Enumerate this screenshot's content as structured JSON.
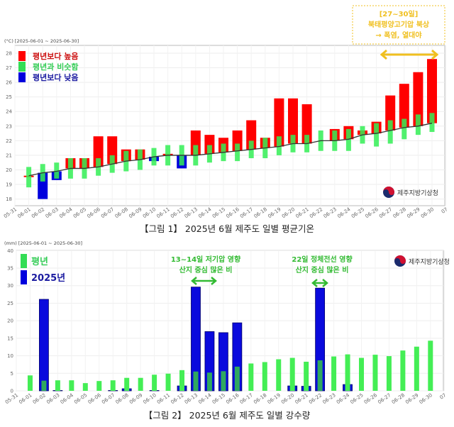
{
  "chart_data": [
    {
      "type": "bar",
      "title": "【그림 1】 2025년 6월 제주도 일별 평균기온",
      "unit_label": "(°C) [2025-06-01 ~ 2025-06-30]",
      "ylim": [
        18,
        28
      ],
      "yticks": [
        "18",
        "19",
        "20",
        "21",
        "22",
        "23",
        "24",
        "25",
        "26",
        "27",
        "28"
      ],
      "xticks": [
        "05-31",
        "06-01",
        "06-02",
        "06-03",
        "06-04",
        "06-05",
        "06-06",
        "06-07",
        "06-08",
        "06-09",
        "06-10",
        "06-11",
        "06-12",
        "06-13",
        "06-14",
        "06-15",
        "06-16",
        "06-17",
        "06-18",
        "06-19",
        "06-20",
        "06-21",
        "06-22",
        "06-23",
        "06-24",
        "06-25",
        "06-26",
        "06-27",
        "06-28",
        "06-29",
        "06-30",
        "07"
      ],
      "legend": [
        {
          "label": "평년보다 높음",
          "color": "#ff0000"
        },
        {
          "label": "평년과 비슷함",
          "color": "#33dd55"
        },
        {
          "label": "평년보다 낮음",
          "color": "#0000dd"
        }
      ],
      "legend_placement": "top-left",
      "observed": [
        19.6,
        18.0,
        19.3,
        20.8,
        20.8,
        22.3,
        22.3,
        21.4,
        21.4,
        20.6,
        21.1,
        20.1,
        22.7,
        22.4,
        22.2,
        22.7,
        23.4,
        22.2,
        24.9,
        24.9,
        24.5,
        22.0,
        22.8,
        23.0,
        22.7,
        23.3,
        25.1,
        25.9,
        26.7,
        27.6
      ],
      "category": [
        "high",
        "low",
        "low",
        "high",
        "high",
        "high",
        "high",
        "high",
        "high",
        "low",
        "high",
        "low",
        "high",
        "high",
        "high",
        "high",
        "high",
        "high",
        "high",
        "high",
        "high",
        "similar",
        "high",
        "high",
        "high",
        "high",
        "high",
        "high",
        "high",
        "high"
      ],
      "normal": [
        19.6,
        19.8,
        19.9,
        20.1,
        20.1,
        20.2,
        20.4,
        20.6,
        20.7,
        20.9,
        21.0,
        21.0,
        21.0,
        21.1,
        21.2,
        21.3,
        21.4,
        21.5,
        21.6,
        21.8,
        21.8,
        22.0,
        22.0,
        22.1,
        22.4,
        22.5,
        22.7,
        22.9,
        23.0,
        23.2
      ],
      "normal_range_low": [
        18.8,
        19.2,
        19.4,
        19.4,
        19.4,
        19.6,
        19.8,
        19.9,
        20.0,
        20.3,
        20.3,
        20.3,
        20.3,
        20.5,
        20.6,
        20.6,
        20.8,
        20.8,
        21.0,
        21.2,
        21.2,
        21.3,
        21.3,
        21.3,
        21.8,
        21.6,
        21.8,
        22.1,
        22.4,
        22.6
      ],
      "normal_range_high": [
        20.2,
        20.4,
        20.5,
        20.8,
        20.8,
        20.8,
        21.0,
        21.3,
        21.4,
        21.5,
        21.7,
        21.7,
        21.7,
        21.7,
        21.8,
        21.8,
        22.0,
        22.2,
        22.3,
        22.4,
        22.4,
        22.7,
        22.7,
        22.8,
        23.0,
        23.2,
        23.4,
        23.5,
        23.8,
        23.9
      ],
      "annotation": {
        "lines": [
          "[27~30일]",
          "북태평양고기압 북상",
          "→ 폭염, 열대야"
        ],
        "color": "#f0c020",
        "span": [
          "06-27",
          "06-30"
        ]
      },
      "logo_text": "제주지방기상청"
    },
    {
      "type": "bar",
      "title": "【그림 2】 2025년 6월 제주도 일별 강수량",
      "unit_label": "(mm) [2025-06-01 ~ 2025-06-30]",
      "ylim": [
        0,
        40
      ],
      "yticks": [
        "0",
        "5",
        "10",
        "15",
        "20",
        "25",
        "30",
        "35",
        "40"
      ],
      "xticks": [
        "05-31",
        "06-01",
        "06-02",
        "06-03",
        "06-04",
        "06-05",
        "06-06",
        "06-07",
        "06-08",
        "06-09",
        "06-10",
        "06-11",
        "06-12",
        "06-13",
        "06-14",
        "06-15",
        "06-16",
        "06-17",
        "06-18",
        "06-19",
        "06-20",
        "06-21",
        "06-22",
        "06-23",
        "06-24",
        "06-25",
        "06-26",
        "06-27",
        "06-28",
        "06-29",
        "06-30",
        "07"
      ],
      "legend": [
        {
          "label": "평년",
          "color": "#33dd55"
        },
        {
          "label": "2025년",
          "color": "#0000dd"
        }
      ],
      "legend_placement": "top-left",
      "series": [
        {
          "name": "평년",
          "values": [
            4.4,
            2.9,
            3.0,
            3.0,
            2.2,
            2.8,
            3.0,
            3.7,
            3.7,
            4.6,
            4.9,
            5.9,
            5.5,
            5.2,
            5.6,
            6.9,
            7.8,
            8.2,
            9.0,
            9.4,
            8.3,
            8.7,
            9.8,
            10.4,
            9.4,
            10.3,
            9.9,
            11.5,
            12.6,
            14.3
          ]
        },
        {
          "name": "2025년",
          "values": [
            0,
            26.1,
            0.1,
            0,
            0,
            0,
            0.1,
            0.6,
            0,
            0.1,
            0,
            1.4,
            29.6,
            16.9,
            16.6,
            19.4,
            0,
            0,
            0,
            1.4,
            1.3,
            29.3,
            0,
            1.8,
            0,
            0,
            0,
            0,
            0,
            0
          ]
        }
      ],
      "annotations": [
        {
          "lines": [
            "13~14일 저기압 영향",
            "산지 중심 많은 비"
          ],
          "span": [
            "06-13",
            "06-14"
          ],
          "color": "#33bb33"
        },
        {
          "lines": [
            "22일 정체전선 영향",
            "산지 중심 많은 비"
          ],
          "span": [
            "06-22",
            "06-22"
          ],
          "color": "#33bb33"
        }
      ],
      "logo_text": "제주지방기상청"
    }
  ]
}
